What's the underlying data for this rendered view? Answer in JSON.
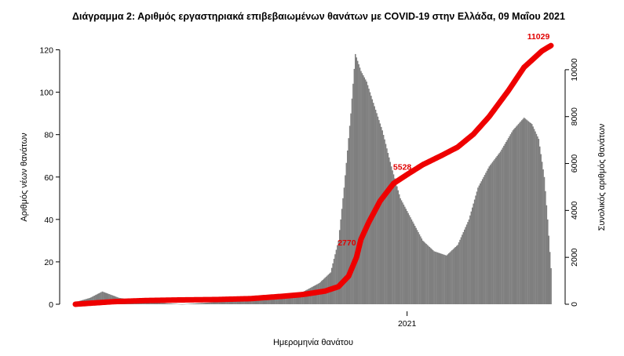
{
  "chart_data": {
    "type": "bar",
    "title": "Διάγραμμα 2: Αριθμός εργαστηριακά επιβεβαιωμένων θανάτων με COVID-19 στην Ελλάδα, 09 Μαΐου 2021",
    "xlabel": "Ημερομηνία θανάτου",
    "ylabel": "Αριθμός νέων θανάτων",
    "y2label": "Συνολικός αριθμός θανάτων",
    "x_ticks": [
      "2021"
    ],
    "x_tick_positions": [
      "2021-01-01"
    ],
    "ylim": [
      0,
      125
    ],
    "y_ticks": [
      0,
      20,
      40,
      60,
      80,
      100,
      120
    ],
    "y2lim": [
      0,
      11300
    ],
    "y2_ticks": [
      0,
      2000,
      4000,
      6000,
      8000,
      10000
    ],
    "colors": {
      "bars": "#7f7f7f",
      "line": "#ee0000",
      "annotations": "#dd0000"
    },
    "series": [
      {
        "name": "",
        "kind": "bar",
        "anchors": [
          [
            "2020-03-12",
            1
          ],
          [
            "2020-03-25",
            3
          ],
          [
            "2020-04-05",
            6
          ],
          [
            "2020-04-20",
            3
          ],
          [
            "2020-05-15",
            1
          ],
          [
            "2020-06-15",
            0
          ],
          [
            "2020-07-15",
            1
          ],
          [
            "2020-08-15",
            2
          ],
          [
            "2020-09-15",
            4
          ],
          [
            "2020-10-01",
            6
          ],
          [
            "2020-10-15",
            10
          ],
          [
            "2020-10-25",
            15
          ],
          [
            "2020-11-01",
            30
          ],
          [
            "2020-11-06",
            55
          ],
          [
            "2020-11-12",
            90
          ],
          [
            "2020-11-16",
            118
          ],
          [
            "2020-11-21",
            110
          ],
          [
            "2020-11-26",
            105
          ],
          [
            "2020-12-02",
            95
          ],
          [
            "2020-12-10",
            82
          ],
          [
            "2020-12-18",
            65
          ],
          [
            "2020-12-26",
            50
          ],
          [
            "2021-01-05",
            40
          ],
          [
            "2021-01-15",
            30
          ],
          [
            "2021-01-25",
            25
          ],
          [
            "2021-02-05",
            23
          ],
          [
            "2021-02-15",
            28
          ],
          [
            "2021-02-25",
            40
          ],
          [
            "2021-03-05",
            55
          ],
          [
            "2021-03-15",
            65
          ],
          [
            "2021-03-25",
            72
          ],
          [
            "2021-04-05",
            82
          ],
          [
            "2021-04-15",
            88
          ],
          [
            "2021-04-22",
            85
          ],
          [
            "2021-04-28",
            78
          ],
          [
            "2021-05-03",
            60
          ],
          [
            "2021-05-06",
            40
          ],
          [
            "2021-05-09",
            17
          ]
        ]
      },
      {
        "name": "",
        "kind": "line",
        "points": [
          [
            "2020-03-12",
            1
          ],
          [
            "2020-04-15",
            110
          ],
          [
            "2020-05-15",
            160
          ],
          [
            "2020-06-15",
            185
          ],
          [
            "2020-07-15",
            200
          ],
          [
            "2020-08-15",
            240
          ],
          [
            "2020-09-15",
            350
          ],
          [
            "2020-10-01",
            420
          ],
          [
            "2020-10-20",
            560
          ],
          [
            "2020-11-01",
            750
          ],
          [
            "2020-11-10",
            1200
          ],
          [
            "2020-11-17",
            2000
          ],
          [
            "2020-11-21",
            2770
          ],
          [
            "2020-11-28",
            3500
          ],
          [
            "2020-12-08",
            4400
          ],
          [
            "2020-12-20",
            5150
          ],
          [
            "2021-01-01",
            5528
          ],
          [
            "2021-01-15",
            5950
          ],
          [
            "2021-02-01",
            6350
          ],
          [
            "2021-02-15",
            6700
          ],
          [
            "2021-03-01",
            7250
          ],
          [
            "2021-03-15",
            8000
          ],
          [
            "2021-04-01",
            9100
          ],
          [
            "2021-04-15",
            10100
          ],
          [
            "2021-05-01",
            10800
          ],
          [
            "2021-05-09",
            11029
          ]
        ]
      }
    ],
    "annotations": [
      {
        "text": "2770",
        "date": "2020-11-21",
        "value": 2770
      },
      {
        "text": "5528",
        "date": "2021-01-01",
        "value": 5528
      },
      {
        "text": "11029",
        "date": "2021-05-09",
        "value": 11029
      }
    ],
    "grid": false,
    "legend": "none"
  }
}
